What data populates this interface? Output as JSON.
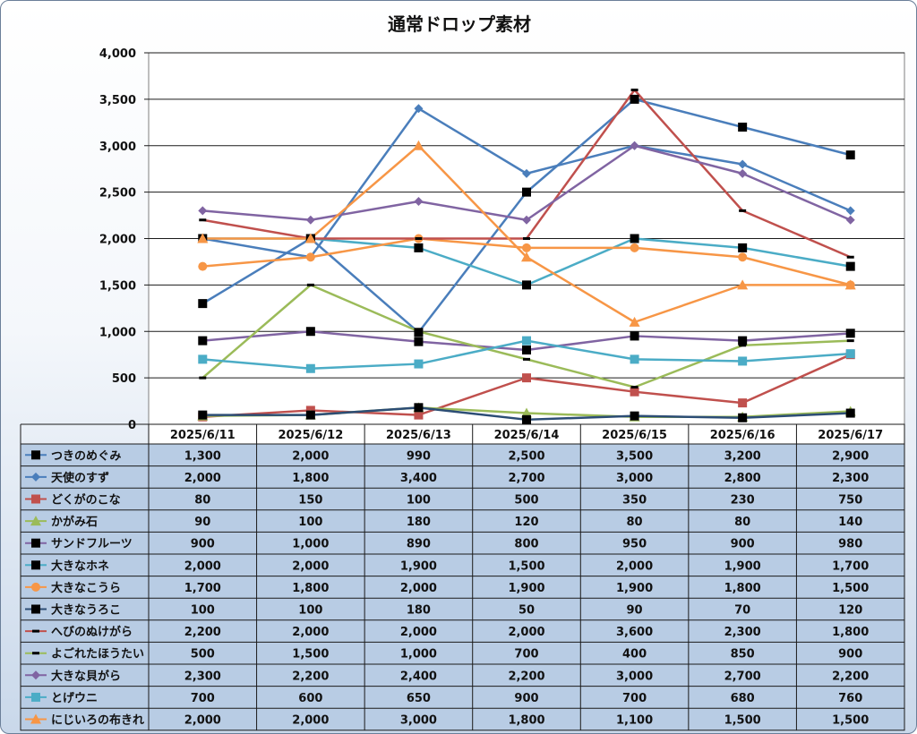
{
  "chart_data": {
    "type": "line",
    "title": "通常ドロップ素材",
    "xlabel": "",
    "ylabel": "",
    "ylim": [
      0,
      4000
    ],
    "ytick_labels": [
      "0",
      "500",
      "1,000",
      "1,500",
      "2,000",
      "2,500",
      "3,000",
      "3,500",
      "4,000"
    ],
    "grid": true,
    "legend_placement": "data-table-left",
    "categories": [
      "2025/6/11",
      "2025/6/12",
      "2025/6/13",
      "2025/6/14",
      "2025/6/15",
      "2025/6/16",
      "2025/6/17"
    ],
    "series": [
      {
        "name": "つきのめぐみ",
        "color": "#000000",
        "line": "#4a7ebb",
        "marker": "square",
        "values": [
          1300,
          2000,
          990,
          2500,
          3500,
          3200,
          2900
        ],
        "labels": [
          "1,300",
          "2,000",
          "990",
          "2,500",
          "3,500",
          "3,200",
          "2,900"
        ]
      },
      {
        "name": "天使のすず",
        "color": "#4a7ebb",
        "line": "#4a7ebb",
        "marker": "diamond",
        "values": [
          2000,
          1800,
          3400,
          2700,
          3000,
          2800,
          2300
        ],
        "labels": [
          "2,000",
          "1,800",
          "3,400",
          "2,700",
          "3,000",
          "2,800",
          "2,300"
        ]
      },
      {
        "name": "どくがのこな",
        "color": "#c0504d",
        "line": "#c0504d",
        "marker": "square",
        "values": [
          80,
          150,
          100,
          500,
          350,
          230,
          750
        ],
        "labels": [
          "80",
          "150",
          "100",
          "500",
          "350",
          "230",
          "750"
        ]
      },
      {
        "name": "かがみ石",
        "color": "#9bbb59",
        "line": "#9bbb59",
        "marker": "triangle",
        "values": [
          90,
          100,
          180,
          120,
          80,
          80,
          140
        ],
        "labels": [
          "90",
          "100",
          "180",
          "120",
          "80",
          "80",
          "140"
        ]
      },
      {
        "name": "サンドフルーツ",
        "color": "#000000",
        "line": "#8064a2",
        "marker": "square",
        "values": [
          900,
          1000,
          890,
          800,
          950,
          900,
          980
        ],
        "labels": [
          "900",
          "1,000",
          "890",
          "800",
          "950",
          "900",
          "980"
        ]
      },
      {
        "name": "大きなホネ",
        "color": "#000000",
        "line": "#4bacc6",
        "marker": "square",
        "values": [
          2000,
          2000,
          1900,
          1500,
          2000,
          1900,
          1700
        ],
        "labels": [
          "2,000",
          "2,000",
          "1,900",
          "1,500",
          "2,000",
          "1,900",
          "1,700"
        ]
      },
      {
        "name": "大きなこうら",
        "color": "#f79646",
        "line": "#f79646",
        "marker": "circle",
        "values": [
          1700,
          1800,
          2000,
          1900,
          1900,
          1800,
          1500
        ],
        "labels": [
          "1,700",
          "1,800",
          "2,000",
          "1,900",
          "1,900",
          "1,800",
          "1,500"
        ]
      },
      {
        "name": "大きなうろこ",
        "color": "#000000",
        "line": "#2c4d75",
        "marker": "square",
        "values": [
          100,
          100,
          180,
          50,
          90,
          70,
          120
        ],
        "labels": [
          "100",
          "100",
          "180",
          "50",
          "90",
          "70",
          "120"
        ]
      },
      {
        "name": "へびのぬけがら",
        "color": "#000000",
        "line": "#c0504d",
        "marker": "dash",
        "values": [
          2200,
          2000,
          2000,
          2000,
          3600,
          2300,
          1800
        ],
        "labels": [
          "2,200",
          "2,000",
          "2,000",
          "2,000",
          "3,600",
          "2,300",
          "1,800"
        ]
      },
      {
        "name": "よごれたほうたい",
        "color": "#000000",
        "line": "#9bbb59",
        "marker": "dash",
        "values": [
          500,
          1500,
          1000,
          700,
          400,
          850,
          900
        ],
        "labels": [
          "500",
          "1,500",
          "1,000",
          "700",
          "400",
          "850",
          "900"
        ]
      },
      {
        "name": "大きな貝がら",
        "color": "#8064a2",
        "line": "#8064a2",
        "marker": "diamond",
        "values": [
          2300,
          2200,
          2400,
          2200,
          3000,
          2700,
          2200
        ],
        "labels": [
          "2,300",
          "2,200",
          "2,400",
          "2,200",
          "3,000",
          "2,700",
          "2,200"
        ]
      },
      {
        "name": "とげウニ",
        "color": "#4bacc6",
        "line": "#4bacc6",
        "marker": "square",
        "values": [
          700,
          600,
          650,
          900,
          700,
          680,
          760
        ],
        "labels": [
          "700",
          "600",
          "650",
          "900",
          "700",
          "680",
          "760"
        ]
      },
      {
        "name": "にじいろの布きれ",
        "color": "#f79646",
        "line": "#f79646",
        "marker": "triangle",
        "values": [
          2000,
          2000,
          3000,
          1800,
          1100,
          1500,
          1500
        ],
        "labels": [
          "2,000",
          "2,000",
          "3,000",
          "1,800",
          "1,100",
          "1,500",
          "1,500"
        ]
      }
    ]
  }
}
